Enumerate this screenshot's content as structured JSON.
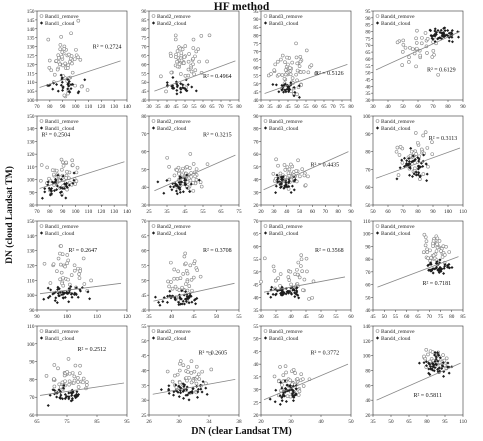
{
  "title": "HF method",
  "ylabel": "DN (cloud Landsat TM)",
  "xlabel": "DN (clear Landsat TM)",
  "legend": {
    "remove_marker": "circle-outline",
    "cloud_marker": "diamond-filled"
  },
  "colors": {
    "remove": "#8a8a8a",
    "cloud": "#1e1e1e",
    "trend": "#888888",
    "axis": "#333333"
  },
  "chart_data": [
    {
      "type": "scatter",
      "row": 0,
      "col": 0,
      "series": [
        {
          "name": "Band1_remove"
        },
        {
          "name": "Band1_cloud"
        }
      ],
      "r2": "R² = 0.2724",
      "xlim": [
        70,
        140
      ],
      "ylim": [
        100,
        150
      ],
      "xticks": [
        "70",
        "80",
        "90",
        "100",
        "110",
        "120",
        "130",
        "140"
      ],
      "yticks": [
        "100",
        "105",
        "110",
        "115",
        "120",
        "125",
        "130",
        "135",
        "140",
        "145",
        "150"
      ],
      "trend": [
        [
          72,
          107
        ],
        [
          135,
          122
        ]
      ],
      "cloud": {
        "n": 30,
        "xc": 92,
        "sx": 10,
        "yc": 108,
        "sy": 3
      },
      "remove": {
        "n": 60,
        "xc": 92,
        "sx": 9,
        "yc": 120,
        "sy": 12
      }
    },
    {
      "type": "scatter",
      "row": 0,
      "col": 1,
      "series": [
        {
          "name": "Band2_remove"
        },
        {
          "name": "Band2_cloud"
        }
      ],
      "r2": "R² = 0.4964",
      "xlim": [
        30,
        80
      ],
      "ylim": [
        40,
        90
      ],
      "xticks": [
        "30",
        "35",
        "40",
        "45",
        "50",
        "55",
        "60",
        "65",
        "70",
        "75",
        "80"
      ],
      "yticks": [
        "40",
        "45",
        "50",
        "55",
        "60",
        "65",
        "70",
        "75",
        "80",
        "85",
        "90"
      ],
      "trend": [
        [
          33,
          45
        ],
        [
          78,
          62
        ]
      ],
      "cloud": {
        "n": 30,
        "xc": 48,
        "sx": 6,
        "yc": 47,
        "sy": 3
      },
      "remove": {
        "n": 60,
        "xc": 50,
        "sx": 7,
        "yc": 62,
        "sy": 10
      }
    },
    {
      "type": "scatter",
      "row": 0,
      "col": 2,
      "series": [
        {
          "name": "Band3_remove"
        },
        {
          "name": "Band3_cloud"
        }
      ],
      "r2": "R² = 0.5126",
      "xlim": [
        30,
        80
      ],
      "ylim": [
        40,
        95
      ],
      "xticks": [
        "30",
        "35",
        "40",
        "45",
        "50",
        "55",
        "60",
        "65",
        "70",
        "75",
        "80"
      ],
      "yticks": [
        "40",
        "45",
        "50",
        "55",
        "60",
        "65",
        "70",
        "75",
        "80",
        "85",
        "90",
        "95"
      ],
      "trend": [
        [
          32,
          44
        ],
        [
          78,
          62
        ]
      ],
      "cloud": {
        "n": 30,
        "xc": 45,
        "sx": 6,
        "yc": 47,
        "sy": 3
      },
      "remove": {
        "n": 60,
        "xc": 46,
        "sx": 8,
        "yc": 58,
        "sy": 9
      }
    },
    {
      "type": "scatter",
      "row": 0,
      "col": 3,
      "series": [
        {
          "name": "Band4_remove"
        },
        {
          "name": "Band4_cloud"
        }
      ],
      "r2": "R² = 0.6129",
      "xlim": [
        30,
        90
      ],
      "ylim": [
        30,
        95
      ],
      "xticks": [
        "30",
        "40",
        "50",
        "60",
        "70",
        "80",
        "90"
      ],
      "yticks": [
        "30",
        "35",
        "40",
        "45",
        "50",
        "55",
        "60",
        "65",
        "70",
        "75",
        "80",
        "85",
        "90",
        "95"
      ],
      "trend": [
        [
          32,
          52
        ],
        [
          88,
          80
        ]
      ],
      "cloud": {
        "n": 55,
        "xc": 75,
        "sx": 7,
        "yc": 78,
        "sy": 4
      },
      "remove": {
        "n": 35,
        "xc": 60,
        "sx": 12,
        "yc": 68,
        "sy": 10
      }
    },
    {
      "type": "scatter",
      "row": 1,
      "col": 0,
      "series": [
        {
          "name": "Band1_remove"
        },
        {
          "name": "Band1_cloud"
        }
      ],
      "r2": "R² = 0.2504",
      "xlim": [
        70,
        140
      ],
      "ylim": [
        80,
        150
      ],
      "xticks": [
        "70",
        "80",
        "90",
        "100",
        "110",
        "120",
        "130",
        "140"
      ],
      "yticks": [
        "80",
        "90",
        "100",
        "110",
        "120",
        "130",
        "140",
        "150"
      ],
      "trend": [
        [
          72,
          93
        ],
        [
          138,
          114
        ]
      ],
      "cloud": {
        "n": 40,
        "xc": 88,
        "sx": 10,
        "yc": 95,
        "sy": 6
      },
      "remove": {
        "n": 50,
        "xc": 90,
        "sx": 10,
        "yc": 102,
        "sy": 10
      }
    },
    {
      "type": "scatter",
      "row": 1,
      "col": 1,
      "series": [
        {
          "name": "Band2_remove"
        },
        {
          "name": "Band2_cloud"
        }
      ],
      "r2": "R² = 0.3215",
      "xlim": [
        25,
        75
      ],
      "ylim": [
        30,
        80
      ],
      "xticks": [
        "25",
        "35",
        "45",
        "55",
        "65",
        "75"
      ],
      "yticks": [
        "30",
        "40",
        "50",
        "60",
        "70",
        "80"
      ],
      "trend": [
        [
          28,
          38
        ],
        [
          73,
          58
        ]
      ],
      "cloud": {
        "n": 40,
        "xc": 42,
        "sx": 6,
        "yc": 42,
        "sy": 4
      },
      "remove": {
        "n": 50,
        "xc": 45,
        "sx": 7,
        "yc": 46,
        "sy": 7
      }
    },
    {
      "type": "scatter",
      "row": 1,
      "col": 2,
      "series": [
        {
          "name": "Band3_remove"
        },
        {
          "name": "Band3_cloud"
        }
      ],
      "r2": "R² = 0.4435",
      "xlim": [
        20,
        90
      ],
      "ylim": [
        20,
        90
      ],
      "xticks": [
        "20",
        "30",
        "40",
        "50",
        "60",
        "70",
        "80",
        "90"
      ],
      "yticks": [
        "20",
        "30",
        "40",
        "50",
        "60",
        "70",
        "80",
        "90"
      ],
      "trend": [
        [
          22,
          32
        ],
        [
          88,
          62
        ]
      ],
      "cloud": {
        "n": 40,
        "xc": 38,
        "sx": 7,
        "yc": 38,
        "sy": 5
      },
      "remove": {
        "n": 50,
        "xc": 42,
        "sx": 9,
        "yc": 44,
        "sy": 8
      }
    },
    {
      "type": "scatter",
      "row": 1,
      "col": 3,
      "series": [
        {
          "name": "Band4_remove"
        },
        {
          "name": "Band4_cloud"
        }
      ],
      "r2": "R² = 0.3113",
      "xlim": [
        50,
        110
      ],
      "ylim": [
        50,
        100
      ],
      "xticks": [
        "50",
        "60",
        "70",
        "80",
        "90",
        "100",
        "110"
      ],
      "yticks": [
        "50",
        "60",
        "70",
        "80",
        "90",
        "100"
      ],
      "trend": [
        [
          52,
          65
        ],
        [
          108,
          82
        ]
      ],
      "cloud": {
        "n": 50,
        "xc": 78,
        "sx": 9,
        "yc": 73,
        "sy": 6
      },
      "remove": {
        "n": 40,
        "xc": 78,
        "sx": 10,
        "yc": 78,
        "sy": 8
      }
    },
    {
      "type": "scatter",
      "row": 2,
      "col": 0,
      "series": [
        {
          "name": "Band1_remove"
        },
        {
          "name": "Band1_cloud"
        }
      ],
      "r2": "R² = 0.2647",
      "xlim": [
        90,
        120
      ],
      "ylim": [
        90,
        150
      ],
      "xticks": [
        "90",
        "100",
        "110",
        "120"
      ],
      "yticks": [
        "90",
        "100",
        "110",
        "120",
        "130",
        "140",
        "150"
      ],
      "trend": [
        [
          91,
          101
        ],
        [
          118,
          108
        ]
      ],
      "cloud": {
        "n": 50,
        "xc": 100,
        "sx": 5,
        "yc": 101,
        "sy": 3
      },
      "remove": {
        "n": 40,
        "xc": 101,
        "sx": 5,
        "yc": 115,
        "sy": 12
      }
    },
    {
      "type": "scatter",
      "row": 2,
      "col": 1,
      "series": [
        {
          "name": "Band2_remove"
        },
        {
          "name": "Band2_cloud"
        }
      ],
      "r2": "R² = 0.3708",
      "xlim": [
        35,
        55
      ],
      "ylim": [
        40,
        70
      ],
      "xticks": [
        "35",
        "40",
        "45",
        "50",
        "55"
      ],
      "yticks": [
        "40",
        "45",
        "50",
        "55",
        "60",
        "65",
        "70"
      ],
      "trend": [
        [
          36,
          43
        ],
        [
          54,
          49
        ]
      ],
      "cloud": {
        "n": 50,
        "xc": 42,
        "sx": 3,
        "yc": 44,
        "sy": 1.5
      },
      "remove": {
        "n": 40,
        "xc": 43,
        "sx": 3,
        "yc": 50,
        "sy": 5
      }
    },
    {
      "type": "scatter",
      "row": 2,
      "col": 2,
      "series": [
        {
          "name": "Band3_remove"
        },
        {
          "name": "Band3_cloud"
        }
      ],
      "r2": "R² = 0.3568",
      "xlim": [
        30,
        60
      ],
      "ylim": [
        35,
        70
      ],
      "xticks": [
        "30",
        "35",
        "40",
        "45",
        "50",
        "55",
        "60"
      ],
      "yticks": [
        "35",
        "40",
        "45",
        "50",
        "55",
        "60",
        "65",
        "70"
      ],
      "trend": [
        [
          31,
          42
        ],
        [
          58,
          48
        ]
      ],
      "cloud": {
        "n": 50,
        "xc": 38,
        "sx": 4,
        "yc": 42,
        "sy": 1.5
      },
      "remove": {
        "n": 40,
        "xc": 40,
        "sx": 5,
        "yc": 47,
        "sy": 5
      }
    },
    {
      "type": "scatter",
      "row": 2,
      "col": 3,
      "series": [
        {
          "name": "Band4_remove"
        },
        {
          "name": "Band4_cloud"
        }
      ],
      "r2": "R² = 0.7181",
      "xlim": [
        45,
        85
      ],
      "ylim": [
        40,
        110
      ],
      "xticks": [
        "45",
        "50",
        "55",
        "60",
        "65",
        "70",
        "75",
        "80",
        "85"
      ],
      "yticks": [
        "40",
        "50",
        "60",
        "70",
        "80",
        "90",
        "100",
        "110"
      ],
      "trend": [
        [
          47,
          58
        ],
        [
          83,
          82
        ]
      ],
      "cloud": {
        "n": 45,
        "xc": 74,
        "sx": 5,
        "yc": 73,
        "sy": 4
      },
      "remove": {
        "n": 45,
        "xc": 73,
        "sx": 5,
        "yc": 88,
        "sy": 8
      }
    },
    {
      "type": "scatter",
      "row": 3,
      "col": 0,
      "series": [
        {
          "name": "Band1_remove"
        },
        {
          "name": "Band1_cloud"
        }
      ],
      "r2": "R² = 0.2512",
      "xlim": [
        65,
        95
      ],
      "ylim": [
        60,
        110
      ],
      "xticks": [
        "65",
        "75",
        "85",
        "95"
      ],
      "yticks": [
        "60",
        "70",
        "80",
        "90",
        "100",
        "110"
      ],
      "trend": [
        [
          66,
          71
        ],
        [
          94,
          78
        ]
      ],
      "cloud": {
        "n": 45,
        "xc": 75,
        "sx": 4,
        "yc": 71,
        "sy": 3
      },
      "remove": {
        "n": 45,
        "xc": 76,
        "sx": 4,
        "yc": 80,
        "sy": 6
      }
    },
    {
      "type": "scatter",
      "row": 3,
      "col": 1,
      "series": [
        {
          "name": "Band2_remove"
        },
        {
          "name": "Band2_cloud"
        }
      ],
      "r2": "R² = 0.2605",
      "xlim": [
        26,
        38
      ],
      "ylim": [
        25,
        55
      ],
      "xticks": [
        "26",
        "30",
        "34",
        "38"
      ],
      "yticks": [
        "25",
        "30",
        "35",
        "40",
        "45",
        "50",
        "55"
      ],
      "trend": [
        [
          26.5,
          32
        ],
        [
          37.5,
          37
        ]
      ],
      "cloud": {
        "n": 45,
        "xc": 31,
        "sx": 2,
        "yc": 33,
        "sy": 2
      },
      "remove": {
        "n": 45,
        "xc": 31,
        "sx": 2,
        "yc": 38,
        "sy": 4
      }
    },
    {
      "type": "scatter",
      "row": 3,
      "col": 2,
      "series": [
        {
          "name": "Band3_remove"
        },
        {
          "name": "Band3_cloud"
        }
      ],
      "r2": "R² = 0.3772",
      "xlim": [
        20,
        50
      ],
      "ylim": [
        20,
        55
      ],
      "xticks": [
        "20",
        "30",
        "40",
        "50"
      ],
      "yticks": [
        "20",
        "25",
        "30",
        "35",
        "40",
        "45",
        "50",
        "55"
      ],
      "trend": [
        [
          21,
          26
        ],
        [
          49,
          40
        ]
      ],
      "cloud": {
        "n": 45,
        "xc": 29,
        "sx": 3,
        "yc": 29,
        "sy": 3
      },
      "remove": {
        "n": 45,
        "xc": 30,
        "sx": 4,
        "yc": 33,
        "sy": 4
      }
    },
    {
      "type": "scatter",
      "row": 3,
      "col": 3,
      "series": [
        {
          "name": "Band4_remove"
        },
        {
          "name": "Band4_cloud"
        }
      ],
      "r2": "R² = 0.5811",
      "xlim": [
        35,
        110
      ],
      "ylim": [
        20,
        140
      ],
      "xticks": [
        "35",
        "50",
        "65",
        "80",
        "95",
        "110"
      ],
      "yticks": [
        "20",
        "40",
        "60",
        "80",
        "100",
        "120",
        "140"
      ],
      "trend": [
        [
          38,
          40
        ],
        [
          108,
          90
        ]
      ],
      "cloud": {
        "n": 50,
        "xc": 88,
        "sx": 8,
        "yc": 88,
        "sy": 10
      },
      "remove": {
        "n": 40,
        "xc": 87,
        "sx": 8,
        "yc": 92,
        "sy": 10
      }
    }
  ]
}
